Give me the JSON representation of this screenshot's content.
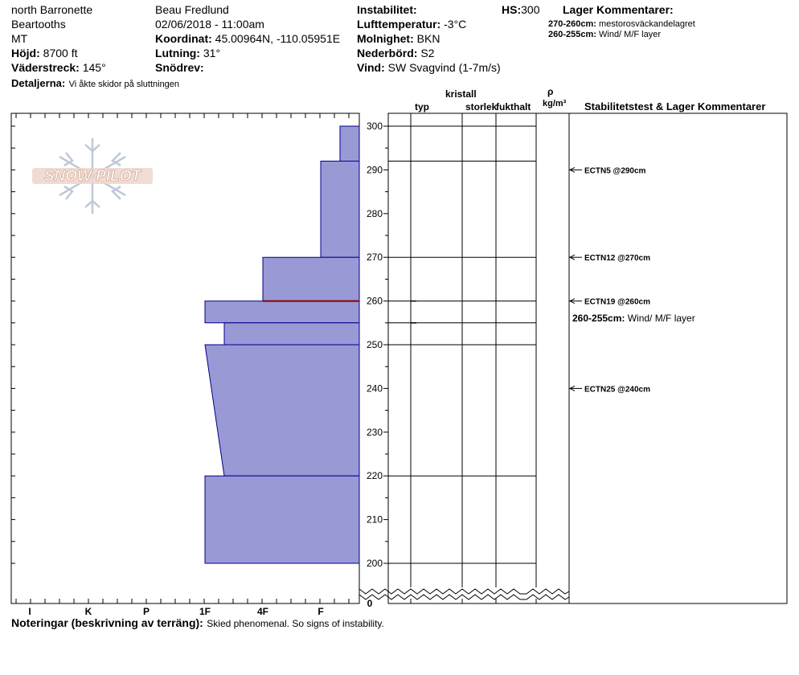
{
  "header": {
    "location": "north Barronette",
    "range": "Beartooths",
    "state": "MT",
    "elevation_label": "Höjd:",
    "elevation_value": "8700 ft",
    "aspect_label": "Väderstreck:",
    "aspect_value": "145°",
    "details_label": "Detaljerna:",
    "details_value": "Vi åkte skidor på sluttningen",
    "observer": "Beau  Fredlund",
    "datetime": "02/06/2018 - 11:00am",
    "coord_label": "Koordinat:",
    "coord_value": "45.00964N, -110.05951E",
    "slope_label": "Lutning:",
    "slope_value": "31°",
    "drift_label": "Snödrev:",
    "drift_value": "",
    "instability_label": "Instabilitet:",
    "instability_value": "",
    "airtemp_label": "Lufttemperatur:",
    "airtemp_value": "-3°C",
    "sky_label": "Molnighet:",
    "sky_value": "BKN",
    "precip_label": "Nederbörd:",
    "precip_value": "S2",
    "wind_label": "Vind:",
    "wind_value": "SW  Svagvind (1-7m/s)",
    "hs_label": "HS:",
    "hs_value": "300",
    "layer_comments_title": "Lager Kommentarer:",
    "layer_comment_1_range": "270-260cm:",
    "layer_comment_1_text": "mestorosväckandelagret",
    "layer_comment_2_range": "260-255cm:",
    "layer_comment_2_text": "Wind/ M/F layer"
  },
  "columns": {
    "crystal": "kristall",
    "type": "typ",
    "size": "storlek",
    "moisture": "fukthalt",
    "rho": "ρ",
    "density_unit": "kg/m³",
    "stability": "Stabilitetstest & Lager Kommentarer"
  },
  "footer": {
    "notes_label": "Noteringar (beskrivning av terräng):",
    "notes_value": "Skied phenomenal.  So signs of instability."
  },
  "logo": {
    "text": "SNOW PILOT"
  },
  "colors": {
    "layer_fill": "#9999d6",
    "layer_stroke": "#00008b",
    "weak_layer": "#8b0000"
  },
  "chart_data": {
    "type": "snow_profile",
    "hardness_ticks": [
      "I",
      "K",
      "P",
      "1F",
      "4F",
      "F"
    ],
    "depth_ticks": [
      300,
      290,
      280,
      270,
      260,
      250,
      240,
      230,
      220,
      210,
      200
    ],
    "depth_bottom_label": "0",
    "depth_range_cm": [
      200,
      300
    ],
    "layers": [
      {
        "top": 300,
        "bottom": 292,
        "hardness_top": "F",
        "hardness_bottom": "F"
      },
      {
        "top": 292,
        "bottom": 270,
        "hardness_top": "F",
        "hardness_bottom": "F"
      },
      {
        "top": 270,
        "bottom": 260,
        "hardness_top": "4F",
        "hardness_bottom": "4F"
      },
      {
        "top": 260,
        "bottom": 255,
        "hardness_top": "1F",
        "hardness_bottom": "1F"
      },
      {
        "top": 255,
        "bottom": 250,
        "hardness_top": "1F+",
        "hardness_bottom": "1F+"
      },
      {
        "top": 250,
        "bottom": 220,
        "hardness_top": "1F",
        "hardness_bottom": "1F+"
      },
      {
        "top": 220,
        "bottom": 200,
        "hardness_top": "1F",
        "hardness_bottom": "1F"
      }
    ],
    "weak_layer_depth": 260,
    "stability_tests": [
      {
        "depth": 290,
        "label": "ECTN5 @290cm"
      },
      {
        "depth": 270,
        "label": "ECTN12 @270cm"
      },
      {
        "depth": 260,
        "label": "ECTN19 @260cm"
      },
      {
        "depth": 240,
        "label": "ECTN25 @240cm"
      }
    ],
    "layer_notes": [
      {
        "depth": 255,
        "range": "260-255cm:",
        "text": "Wind/ M/F layer"
      }
    ]
  }
}
